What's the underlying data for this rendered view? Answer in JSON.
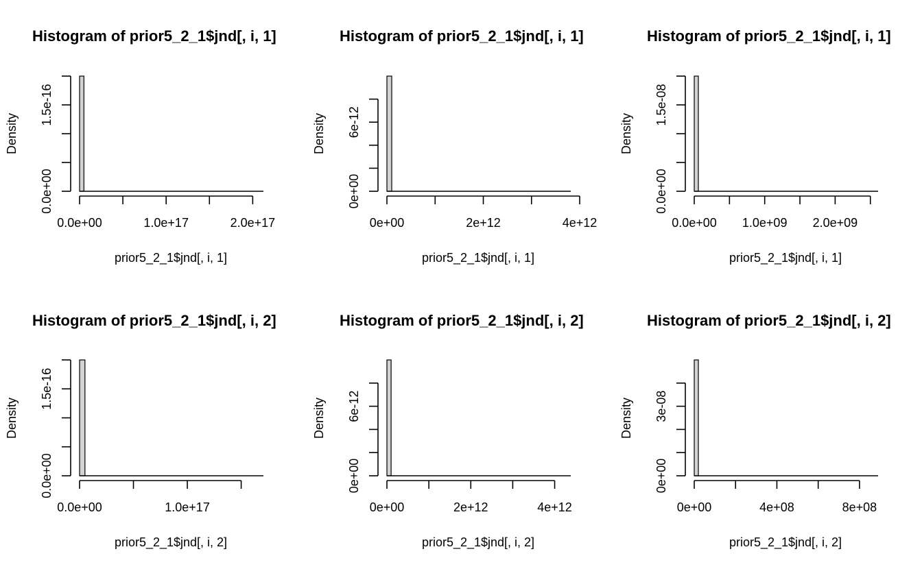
{
  "chart_data": [
    {
      "type": "bar",
      "title": "Histogram of prior5_2_1$jnd[, i, 1]",
      "xlabel": "prior5_2_1$jnd[, i, 1]",
      "ylabel": "Density",
      "x_ticks": [
        0,
        5e+16,
        1e+17,
        1.5e+17,
        2e+17
      ],
      "x_tick_labels": [
        "0.0e+00",
        "",
        "1.0e+17",
        "",
        "2.0e+17"
      ],
      "y_ticks": [
        0,
        5e-17,
        1e-16,
        1.5e-16,
        2e-16
      ],
      "y_tick_labels": [
        "0.0e+00",
        "",
        "",
        "1.5e-16",
        ""
      ],
      "xlim": [
        0,
        2.1e+17
      ],
      "ylim": [
        0,
        2e-16
      ],
      "bins": [
        {
          "start": 0,
          "end": 5000000000000000.0,
          "density": 2e-16
        }
      ]
    },
    {
      "type": "bar",
      "title": "Histogram of prior5_2_1$jnd[, i, 1]",
      "xlabel": "prior5_2_1$jnd[, i, 1]",
      "ylabel": "Density",
      "x_ticks": [
        0,
        1000000000000.0,
        2000000000000.0,
        3000000000000.0,
        4000000000000.0
      ],
      "x_tick_labels": [
        "0e+00",
        "",
        "2e+12",
        "",
        "4e+12"
      ],
      "y_ticks": [
        0,
        2e-12,
        4e-12,
        6e-12,
        8e-12
      ],
      "y_tick_labels": [
        "0e+00",
        "",
        "",
        "6e-12",
        ""
      ],
      "xlim": [
        0,
        3900000000000.0
      ],
      "ylim": [
        0,
        1e-11
      ],
      "bins": [
        {
          "start": 0,
          "end": 100000000000.0,
          "density": 1e-11
        }
      ]
    },
    {
      "type": "bar",
      "title": "Histogram of prior5_2_1$jnd[, i, 1]",
      "xlabel": "prior5_2_1$jnd[, i, 1]",
      "ylabel": "Density",
      "x_ticks": [
        0,
        500000000.0,
        1000000000.0,
        1500000000.0,
        2000000000.0,
        2500000000.0
      ],
      "x_tick_labels": [
        "0.0e+00",
        "",
        "1.0e+09",
        "",
        "2.0e+09",
        ""
      ],
      "y_ticks": [
        0,
        5e-09,
        1e-08,
        1.5e-08,
        2e-08
      ],
      "y_tick_labels": [
        "0.0e+00",
        "",
        "",
        "1.5e-08",
        ""
      ],
      "xlim": [
        0,
        2600000000.0
      ],
      "ylim": [
        0,
        2e-08
      ],
      "bins": [
        {
          "start": 0,
          "end": 50000000.0,
          "density": 2e-08
        }
      ]
    },
    {
      "type": "bar",
      "title": "Histogram of prior5_2_1$jnd[, i, 2]",
      "xlabel": "prior5_2_1$jnd[, i, 2]",
      "ylabel": "Density",
      "x_ticks": [
        0,
        5e+16,
        1e+17,
        1.5e+17
      ],
      "x_tick_labels": [
        "0.0e+00",
        "",
        "1.0e+17",
        ""
      ],
      "y_ticks": [
        0,
        5e-17,
        1e-16,
        1.5e-16,
        2e-16
      ],
      "y_tick_labels": [
        "0.0e+00",
        "",
        "",
        "1.5e-16",
        ""
      ],
      "xlim": [
        0,
        1.7e+17
      ],
      "ylim": [
        0,
        2e-16
      ],
      "bins": [
        {
          "start": 0,
          "end": 5000000000000000.0,
          "density": 2e-16
        }
      ]
    },
    {
      "type": "bar",
      "title": "Histogram of prior5_2_1$jnd[, i, 2]",
      "xlabel": "prior5_2_1$jnd[, i, 2]",
      "ylabel": "Density",
      "x_ticks": [
        0,
        1000000000000.0,
        2000000000000.0,
        3000000000000.0,
        4000000000000.0
      ],
      "x_tick_labels": [
        "0e+00",
        "",
        "2e+12",
        "",
        "4e+12"
      ],
      "y_ticks": [
        0,
        2e-12,
        4e-12,
        6e-12,
        8e-12
      ],
      "y_tick_labels": [
        "0e+00",
        "",
        "",
        "6e-12",
        ""
      ],
      "xlim": [
        0,
        4400000000000.0
      ],
      "ylim": [
        0,
        1e-11
      ],
      "bins": [
        {
          "start": 0,
          "end": 100000000000.0,
          "density": 1e-11
        }
      ]
    },
    {
      "type": "bar",
      "title": "Histogram of prior5_2_1$jnd[, i, 2]",
      "xlabel": "prior5_2_1$jnd[, i, 2]",
      "ylabel": "Density",
      "x_ticks": [
        0,
        200000000.0,
        400000000.0,
        600000000.0,
        800000000.0
      ],
      "x_tick_labels": [
        "0e+00",
        "",
        "4e+08",
        "",
        "8e+08"
      ],
      "y_ticks": [
        0,
        1e-08,
        2e-08,
        3e-08,
        4e-08
      ],
      "y_tick_labels": [
        "0e+00",
        "",
        "",
        "3e-08",
        ""
      ],
      "xlim": [
        0,
        890000000.0
      ],
      "ylim": [
        0,
        5e-08
      ],
      "bins": [
        {
          "start": 0,
          "end": 20000000.0,
          "density": 5e-08
        }
      ]
    }
  ]
}
